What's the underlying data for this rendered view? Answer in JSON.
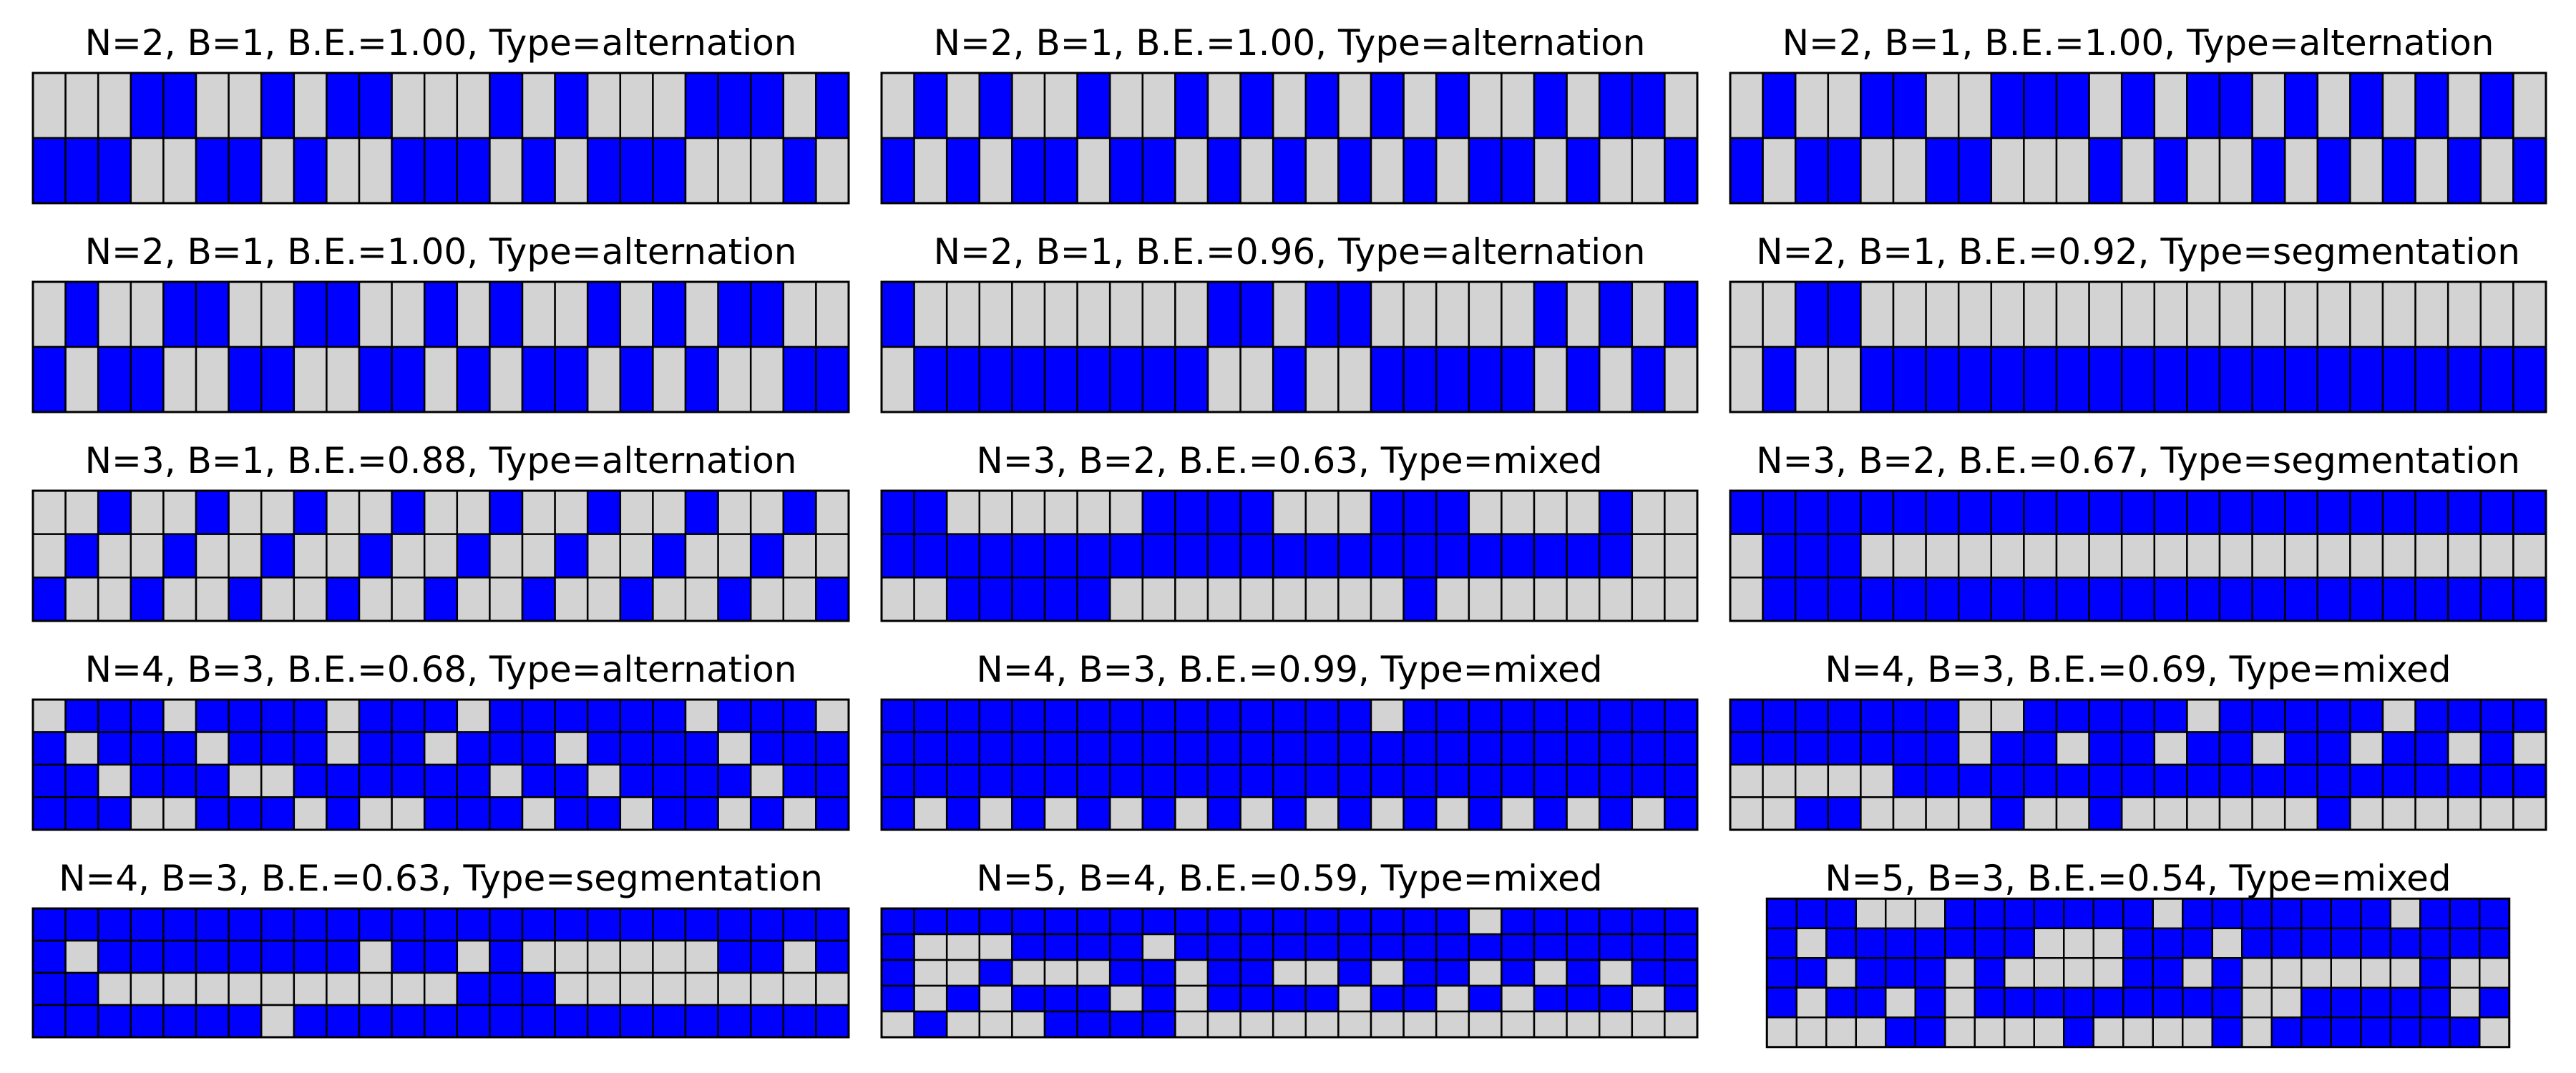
{
  "figure": {
    "colors": {
      "on": "#0000ff",
      "off": "#d3d3d3",
      "grid": "#000000",
      "background": "#ffffff"
    }
  },
  "chart_data": [
    {
      "type": "heatmap",
      "title": "N=2, B=1, B.E.=1.00, Type=alternation",
      "rows": [
        "0001100101100010100011101",
        "1110011010011101011100010"
      ]
    },
    {
      "type": "heatmap",
      "title": "N=2, B=1, B.E.=1.00, Type=alternation",
      "rows": [
        "0101001001010101010010110",
        "1010110110101010101101001"
      ]
    },
    {
      "type": "heatmap",
      "title": "N=2, B=1, B.E.=1.00, Type=alternation",
      "rows": [
        "0100110011101011010101010",
        "1011001100010100101010101"
      ]
    },
    {
      "type": "heatmap",
      "title": "N=2, B=1, B.E.=1.00, Type=alternation",
      "rows": [
        "0100110011001010010101100",
        "1011001100110101101010011"
      ]
    },
    {
      "type": "heatmap",
      "title": "N=2, B=1, B.E.=0.96, Type=alternation",
      "rows": [
        "1000000000110110000010101",
        "0111111111001001111101010"
      ]
    },
    {
      "type": "heatmap",
      "title": "N=2, B=1, B.E.=0.92, Type=segmentation",
      "rows": [
        "0011000000000000000000000",
        "0100111111111111111111111"
      ]
    },
    {
      "type": "heatmap",
      "title": "N=3, B=1, B.E.=0.88, Type=alternation",
      "rows": [
        "0010010010010010010010010",
        "0100100100100100100100100",
        "1001001001001001001001001"
      ]
    },
    {
      "type": "heatmap",
      "title": "N=3, B=2, B.E.=0.63, Type=mixed",
      "rows": [
        "1100000011110001110000100",
        "1111111111111111111111100",
        "0011111000000000100000000"
      ]
    },
    {
      "type": "heatmap",
      "title": "N=3, B=2, B.E.=0.67, Type=segmentation",
      "rows": [
        "1111111111111111111111111",
        "0111000000000000000000000",
        "0111111111111111111111111"
      ]
    },
    {
      "type": "heatmap",
      "title": "N=4, B=3, B.E.=0.68, Type=alternation",
      "rows": [
        "0111011110111011111101110",
        "1011101110110111011110111",
        "1101110011111101101111011",
        "1110011101001110110110101"
      ]
    },
    {
      "type": "heatmap",
      "title": "N=4, B=3, B.E.=0.99, Type=mixed",
      "rows": [
        "1111111111111110111111111",
        "1111111111111111111111111",
        "1111111111111111111111111",
        "1010101010101010101010101"
      ]
    },
    {
      "type": "heatmap",
      "title": "N=4, B=3, B.E.=0.69, Type=mixed",
      "rows": [
        "1111111001111101111101111",
        "1111111011011011011011010",
        "0000011111111111111111111",
        "0011000010010000001000000"
      ]
    },
    {
      "type": "heatmap",
      "title": "N=4, B=3, B.E.=0.63, Type=segmentation",
      "rows": [
        "1111111111111111111111111",
        "1011111111011010000001101",
        "1100000000000111000000000",
        "1111111011111111111111111"
      ]
    },
    {
      "type": "heatmap",
      "title": "N=5, B=4, B.E.=0.59, Type=mixed",
      "rows": [
        "1111111111111111110111111",
        "1000111101111111111111111",
        "1001000110110010110101011",
        "1010111010111101101011101",
        "0100011110000000000000000"
      ]
    },
    {
      "type": "heatmap",
      "title": "N=5, B=3, B.E.=0.54, Type=mixed",
      "rows": [
        "1110001111111011111110111",
        "1011111110001110111111111",
        "1101110100001101000000100",
        "1011010111111111001111101",
        "0000110000100001011111110"
      ]
    }
  ]
}
